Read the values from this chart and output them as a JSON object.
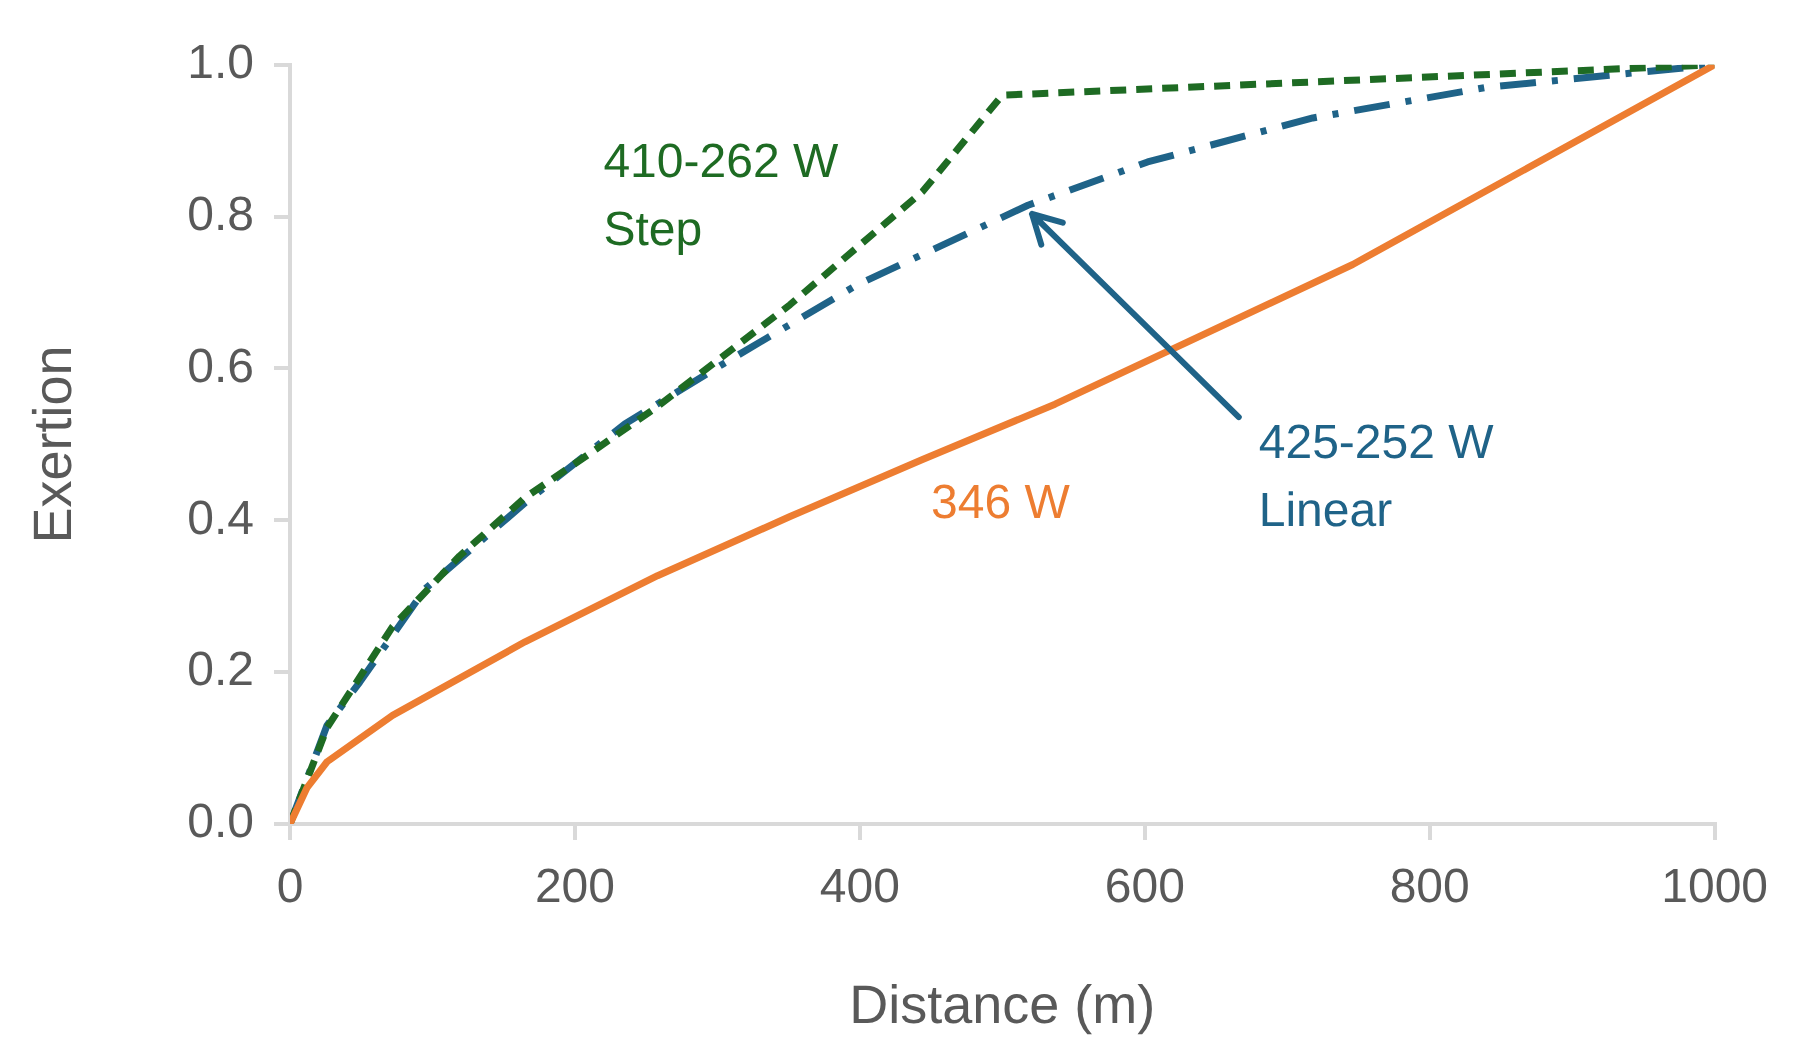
{
  "chart_data": {
    "type": "line",
    "xlabel": "Distance (m)",
    "ylabel": "Exertion",
    "xlim": [
      0,
      1000
    ],
    "xticks": [
      0,
      200,
      400,
      600,
      800,
      1000
    ],
    "ylim": [
      0,
      1.0
    ],
    "yticks": [
      {
        "value": 0,
        "label": "0.0"
      },
      {
        "value": 0.2,
        "label": "0.2"
      },
      {
        "value": 0.4,
        "label": "0.4"
      },
      {
        "value": 0.6,
        "label": "0.6"
      },
      {
        "value": 0.8,
        "label": "0.8"
      },
      {
        "value": 1.0,
        "label": "1.0"
      }
    ],
    "grid": false,
    "legend": false,
    "marker": "none",
    "series": [
      {
        "name": "346 W",
        "color": "#ed7d31",
        "line_style": "solid",
        "x": [
          0,
          12,
          26,
          72,
          165,
          258,
          351,
          444,
          537,
          746,
          1000
        ],
        "values": [
          0,
          0.048,
          0.082,
          0.143,
          0.24,
          0.327,
          0.405,
          0.48,
          0.553,
          0.737,
          1.0
        ]
      },
      {
        "name": "410-262 W\nStep",
        "color": "#1e6b23",
        "line_style": "dashed",
        "x": [
          0,
          26,
          72,
          119,
          165,
          212,
          258,
          351,
          444,
          500,
          1000
        ],
        "values": [
          0,
          0.127,
          0.26,
          0.353,
          0.43,
          0.49,
          0.55,
          0.684,
          0.833,
          0.96,
          1.0
        ]
      },
      {
        "name": "425-252 W\nLinear",
        "color": "#1f6388",
        "line_style": "dashdot",
        "x": [
          0,
          26,
          49,
          95,
          165,
          235,
          304,
          398,
          518,
          602,
          718,
          839,
          1000
        ],
        "values": [
          0,
          0.13,
          0.187,
          0.31,
          0.423,
          0.527,
          0.606,
          0.71,
          0.815,
          0.872,
          0.93,
          0.97,
          1.0
        ]
      }
    ]
  }
}
